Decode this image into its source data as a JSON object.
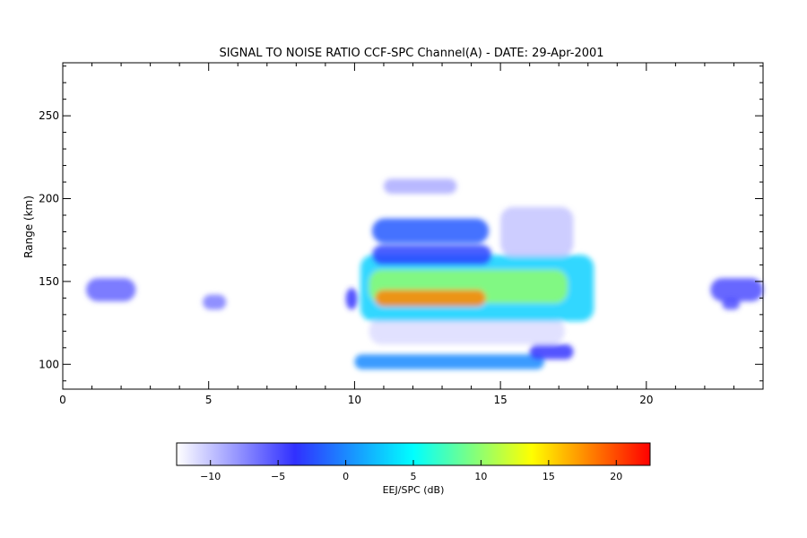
{
  "chart_data": {
    "type": "heatmap",
    "title": "SIGNAL TO NOISE RATIO CCF-SPC Channel(A) - DATE: 29-Apr-2001",
    "xlabel": "",
    "ylabel": "Range (km)",
    "xlim": [
      0,
      24
    ],
    "ylim": [
      85,
      282
    ],
    "x_ticks": [
      0,
      5,
      10,
      15,
      20
    ],
    "y_ticks": [
      100,
      150,
      200,
      250
    ],
    "colorbar": {
      "label": "EEJ/SPC (dB)",
      "range": [
        -12.5,
        22.5
      ],
      "ticks": [
        -10,
        -5,
        0,
        5,
        10,
        15,
        20
      ],
      "colors": [
        "#ffffff",
        "#3030ff",
        "#00ffff",
        "#ffff00",
        "#ff0000"
      ]
    },
    "echo_regions": [
      {
        "x": [
          0.8,
          2.5
        ],
        "y": [
          138,
          152
        ],
        "snr": -6
      },
      {
        "x": [
          4.8,
          5.6
        ],
        "y": [
          133,
          142
        ],
        "snr": -7
      },
      {
        "x": [
          9.7,
          10.1
        ],
        "y": [
          133,
          146
        ],
        "snr": -4
      },
      {
        "x": [
          10.0,
          16.5
        ],
        "y": [
          97,
          106
        ],
        "snr": 0
      },
      {
        "x": [
          16.0,
          17.5
        ],
        "y": [
          103,
          112
        ],
        "snr": -4
      },
      {
        "x": [
          10.5,
          17.2
        ],
        "y": [
          112,
          128
        ],
        "snr": -11
      },
      {
        "x": [
          10.2,
          18.2
        ],
        "y": [
          126,
          166
        ],
        "snr": 3
      },
      {
        "x": [
          10.5,
          17.3
        ],
        "y": [
          137,
          157
        ],
        "snr": 10
      },
      {
        "x": [
          10.7,
          14.5
        ],
        "y": [
          135,
          145
        ],
        "snr": 18
      },
      {
        "x": [
          10.6,
          14.7
        ],
        "y": [
          160,
          172
        ],
        "snr": -3
      },
      {
        "x": [
          10.6,
          14.6
        ],
        "y": [
          173,
          188
        ],
        "snr": -2
      },
      {
        "x": [
          15.0,
          17.5
        ],
        "y": [
          165,
          195
        ],
        "snr": -10
      },
      {
        "x": [
          11.0,
          13.5
        ],
        "y": [
          203,
          212
        ],
        "snr": -9
      },
      {
        "x": [
          22.2,
          24.0
        ],
        "y": [
          138,
          152
        ],
        "snr": -5
      },
      {
        "x": [
          22.6,
          23.2
        ],
        "y": [
          133,
          140
        ],
        "snr": -5
      }
    ]
  }
}
